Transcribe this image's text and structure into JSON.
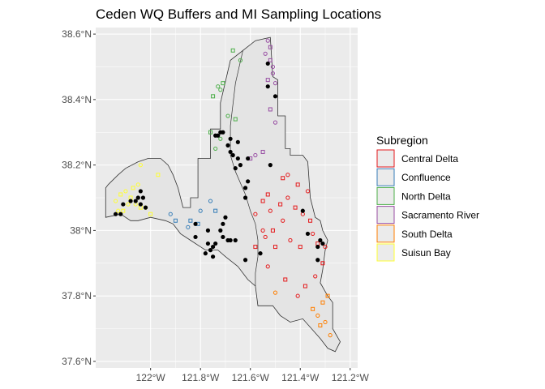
{
  "chart_data": {
    "type": "map",
    "title": "Ceden WQ Buffers and MI Sampling Locations",
    "x_ticks": [
      "122°W",
      "121.8°W",
      "121.6°W",
      "121.4°W",
      "121.2°W"
    ],
    "x_tick_values": [
      -122.0,
      -121.8,
      -121.6,
      -121.4,
      -121.2
    ],
    "y_ticks": [
      "38.6°N",
      "38.4°N",
      "38.2°N",
      "38°N",
      "37.8°N",
      "37.6°N"
    ],
    "y_tick_values": [
      38.6,
      38.4,
      38.2,
      38.0,
      37.8,
      37.6
    ],
    "xlim": [
      -122.22,
      -121.17
    ],
    "ylim": [
      37.58,
      38.62
    ],
    "background_color": "#ebebeb",
    "grid": true,
    "legend": {
      "title": "Subregion",
      "position": "right",
      "entries": [
        {
          "label": "Central Delta",
          "color": "#e41a1c"
        },
        {
          "label": "Confluence",
          "color": "#377eb8"
        },
        {
          "label": "North Delta",
          "color": "#4daf4a"
        },
        {
          "label": "Sacramento River",
          "color": "#984ea3"
        },
        {
          "label": "South Delta",
          "color": "#ff7f00"
        },
        {
          "label": "Suisun Bay",
          "color": "#ffff33"
        }
      ]
    },
    "region_outline": [
      [
        -121.84,
        38.07
      ],
      [
        -121.84,
        38.1
      ],
      [
        -121.81,
        38.1
      ],
      [
        -121.81,
        38.22
      ],
      [
        -121.76,
        38.22
      ],
      [
        -121.76,
        38.31
      ],
      [
        -121.72,
        38.31
      ],
      [
        -121.72,
        38.39
      ],
      [
        -121.68,
        38.52
      ],
      [
        -121.58,
        38.58
      ],
      [
        -121.52,
        38.59
      ],
      [
        -121.51,
        38.47
      ],
      [
        -121.49,
        38.46
      ],
      [
        -121.49,
        38.35
      ],
      [
        -121.46,
        38.35
      ],
      [
        -121.46,
        38.25
      ],
      [
        -121.44,
        38.25
      ],
      [
        -121.44,
        38.23
      ],
      [
        -121.39,
        38.23
      ],
      [
        -121.37,
        38.21
      ],
      [
        -121.36,
        38.1
      ],
      [
        -121.34,
        38.04
      ],
      [
        -121.32,
        38.03
      ],
      [
        -121.31,
        38.0
      ],
      [
        -121.29,
        37.97
      ],
      [
        -121.3,
        37.94
      ],
      [
        -121.31,
        37.88
      ],
      [
        -121.32,
        37.84
      ],
      [
        -121.29,
        37.8
      ],
      [
        -121.27,
        37.78
      ],
      [
        -121.27,
        37.7
      ],
      [
        -121.24,
        37.66
      ],
      [
        -121.26,
        37.63
      ],
      [
        -121.29,
        37.64
      ],
      [
        -121.32,
        37.67
      ],
      [
        -121.39,
        37.73
      ],
      [
        -121.44,
        37.72
      ],
      [
        -121.48,
        37.74
      ],
      [
        -121.51,
        37.77
      ],
      [
        -121.57,
        37.77
      ],
      [
        -121.58,
        37.83
      ],
      [
        -121.61,
        37.85
      ],
      [
        -121.65,
        37.89
      ],
      [
        -121.7,
        37.92
      ],
      [
        -121.73,
        37.94
      ],
      [
        -121.78,
        37.94
      ],
      [
        -121.8,
        37.95
      ],
      [
        -121.84,
        37.97
      ],
      [
        -121.88,
        37.99
      ],
      [
        -121.91,
        38.02
      ],
      [
        -121.94,
        38.03
      ],
      [
        -122.0,
        38.04
      ],
      [
        -122.05,
        38.03
      ],
      [
        -122.08,
        38.03
      ],
      [
        -122.12,
        38.05
      ],
      [
        -122.18,
        38.04
      ],
      [
        -122.18,
        38.08
      ],
      [
        -122.18,
        38.13
      ],
      [
        -122.17,
        38.14
      ],
      [
        -122.13,
        38.17
      ],
      [
        -122.1,
        38.19
      ],
      [
        -122.05,
        38.21
      ],
      [
        -122.01,
        38.22
      ],
      [
        -121.96,
        38.22
      ],
      [
        -121.93,
        38.2
      ],
      [
        -121.91,
        38.17
      ],
      [
        -121.89,
        38.13
      ],
      [
        -121.88,
        38.1
      ],
      [
        -121.87,
        38.07
      ]
    ],
    "inner_boundary": [
      [
        -121.63,
        38.55
      ],
      [
        -121.66,
        38.45
      ],
      [
        -121.68,
        38.32
      ],
      [
        -121.68,
        38.23
      ],
      [
        -121.66,
        38.18
      ],
      [
        -121.62,
        38.11
      ],
      [
        -121.6,
        38.06
      ],
      [
        -121.58,
        38.02
      ],
      [
        -121.57,
        37.97
      ],
      [
        -121.57,
        37.92
      ],
      [
        -121.58,
        37.87
      ],
      [
        -121.58,
        37.83
      ]
    ],
    "buffers": {
      "Central Delta": [
        [
          -121.58,
          38.05
        ],
        [
          -121.55,
          38.09
        ],
        [
          -121.52,
          38.06
        ],
        [
          -121.48,
          38.08
        ],
        [
          -121.45,
          38.1
        ],
        [
          -121.42,
          38.07
        ],
        [
          -121.39,
          38.05
        ],
        [
          -121.36,
          38.03
        ],
        [
          -121.47,
          38.03
        ],
        [
          -121.51,
          38.0
        ],
        [
          -121.54,
          37.98
        ],
        [
          -121.5,
          37.95
        ],
        [
          -121.44,
          37.97
        ],
        [
          -121.4,
          37.95
        ],
        [
          -121.35,
          37.99
        ],
        [
          -121.33,
          37.96
        ],
        [
          -121.3,
          37.95
        ],
        [
          -121.31,
          37.9
        ],
        [
          -121.34,
          37.86
        ],
        [
          -121.38,
          37.83
        ],
        [
          -121.41,
          37.8
        ],
        [
          -121.46,
          37.85
        ],
        [
          -121.53,
          37.89
        ],
        [
          -121.58,
          37.95
        ],
        [
          -121.55,
          38.0
        ],
        [
          -121.47,
          38.16
        ],
        [
          -121.45,
          38.17
        ],
        [
          -121.41,
          38.14
        ],
        [
          -121.37,
          38.12
        ],
        [
          -121.53,
          38.11
        ]
      ],
      "Confluence": [
        [
          -121.8,
          38.06
        ],
        [
          -121.81,
          38.02
        ],
        [
          -121.85,
          38.01
        ],
        [
          -121.9,
          38.03
        ],
        [
          -121.92,
          38.05
        ],
        [
          -121.84,
          38.03
        ],
        [
          -121.76,
          38.09
        ],
        [
          -121.74,
          38.06
        ]
      ],
      "North Delta": [
        [
          -121.73,
          38.44
        ],
        [
          -121.71,
          38.45
        ],
        [
          -121.72,
          38.43
        ],
        [
          -121.75,
          38.41
        ],
        [
          -121.64,
          38.52
        ],
        [
          -121.67,
          38.55
        ],
        [
          -121.69,
          38.35
        ],
        [
          -121.76,
          38.3
        ],
        [
          -121.72,
          38.28
        ],
        [
          -121.66,
          38.34
        ],
        [
          -121.74,
          38.25
        ]
      ],
      "Sacramento River": [
        [
          -121.53,
          38.58
        ],
        [
          -121.52,
          38.56
        ],
        [
          -121.54,
          38.54
        ],
        [
          -121.52,
          38.52
        ],
        [
          -121.51,
          38.48
        ],
        [
          -121.53,
          38.46
        ],
        [
          -121.5,
          38.45
        ],
        [
          -121.52,
          38.37
        ],
        [
          -121.5,
          38.33
        ],
        [
          -121.55,
          38.24
        ],
        [
          -121.58,
          38.23
        ],
        [
          -121.6,
          38.22
        ],
        [
          -121.51,
          38.5
        ]
      ],
      "South Delta": [
        [
          -121.5,
          37.81
        ],
        [
          -121.35,
          37.76
        ],
        [
          -121.33,
          37.74
        ],
        [
          -121.31,
          37.78
        ],
        [
          -121.3,
          37.72
        ],
        [
          -121.32,
          37.71
        ],
        [
          -121.28,
          37.68
        ],
        [
          -121.29,
          37.8
        ]
      ],
      "Suisun Bay": [
        [
          -122.14,
          38.09
        ],
        [
          -122.12,
          38.11
        ],
        [
          -122.1,
          38.12
        ],
        [
          -122.08,
          38.1
        ],
        [
          -122.06,
          38.08
        ],
        [
          -122.04,
          38.07
        ],
        [
          -122.02,
          38.07
        ],
        [
          -122.0,
          38.05
        ],
        [
          -122.05,
          38.14
        ],
        [
          -122.07,
          38.13
        ],
        [
          -122.04,
          38.2
        ],
        [
          -121.97,
          38.17
        ],
        [
          -122.13,
          38.06
        ],
        [
          -122.11,
          38.06
        ],
        [
          -122.09,
          38.08
        ]
      ]
    },
    "sampling_points": [
      [
        -121.53,
        38.51
      ],
      [
        -121.5,
        38.41
      ],
      [
        -121.53,
        38.44
      ],
      [
        -121.65,
        38.27
      ],
      [
        -121.72,
        38.3
      ],
      [
        -121.73,
        38.29
      ],
      [
        -121.74,
        38.29
      ],
      [
        -121.71,
        38.3
      ],
      [
        -121.68,
        38.28
      ],
      [
        -121.69,
        38.26
      ],
      [
        -121.68,
        38.24
      ],
      [
        -121.67,
        38.23
      ],
      [
        -121.65,
        38.22
      ],
      [
        -121.64,
        38.2
      ],
      [
        -121.66,
        38.19
      ],
      [
        -121.61,
        38.22
      ],
      [
        -121.61,
        38.15
      ],
      [
        -121.62,
        38.13
      ],
      [
        -121.62,
        38.1
      ],
      [
        -121.52,
        38.2
      ],
      [
        -121.7,
        38.04
      ],
      [
        -121.71,
        38.02
      ],
      [
        -121.72,
        38.0
      ],
      [
        -121.74,
        37.96
      ],
      [
        -121.75,
        37.95
      ],
      [
        -121.76,
        37.94
      ],
      [
        -121.77,
        37.96
      ],
      [
        -121.75,
        37.92
      ],
      [
        -121.78,
        37.93
      ],
      [
        -121.77,
        38.0
      ],
      [
        -121.69,
        37.97
      ],
      [
        -121.71,
        37.98
      ],
      [
        -121.68,
        37.97
      ],
      [
        -121.66,
        37.97
      ],
      [
        -121.62,
        37.91
      ],
      [
        -121.56,
        37.93
      ],
      [
        -121.82,
        38.02
      ],
      [
        -121.82,
        37.98
      ],
      [
        -122.05,
        38.1
      ],
      [
        -122.08,
        38.09
      ],
      [
        -122.04,
        38.12
      ],
      [
        -122.03,
        38.1
      ],
      [
        -122.06,
        38.09
      ],
      [
        -122.11,
        38.08
      ],
      [
        -122.12,
        38.05
      ],
      [
        -122.14,
        38.05
      ],
      [
        -122.02,
        38.07
      ],
      [
        -122.04,
        38.08
      ],
      [
        -121.39,
        38.06
      ],
      [
        -121.37,
        37.99
      ],
      [
        -121.33,
        37.95
      ],
      [
        -121.32,
        37.97
      ],
      [
        -121.31,
        37.96
      ],
      [
        -121.33,
        37.91
      ]
    ]
  }
}
